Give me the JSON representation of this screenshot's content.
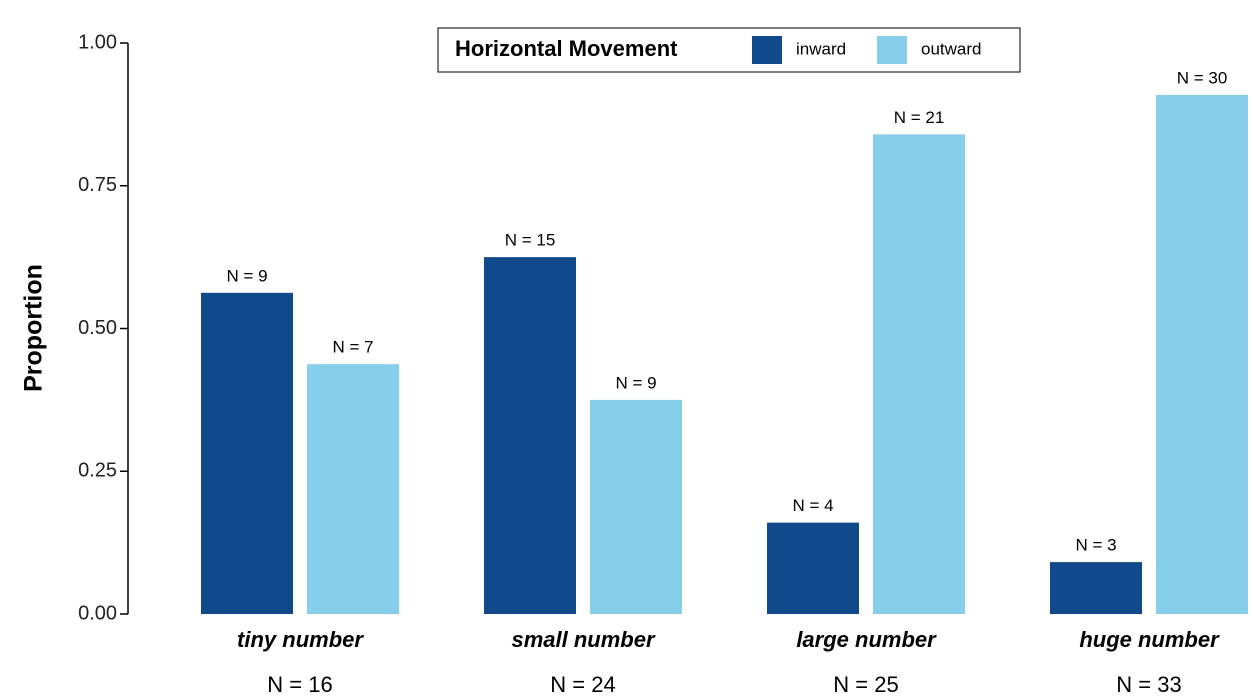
{
  "chart_data": {
    "type": "bar",
    "y_label": "Proportion",
    "legend_title": "Horizontal Movement",
    "categories": [
      "tiny number",
      "small number",
      "large number",
      "huge number"
    ],
    "category_counts": [
      "N = 16",
      "N = 24",
      "N = 25",
      "N = 33"
    ],
    "series": [
      {
        "name": "inward",
        "color": "#114a8b",
        "values": [
          0.5625,
          0.625,
          0.16,
          0.0909
        ],
        "value_labels": [
          "N = 9",
          "N = 15",
          "N = 4",
          "N = 3"
        ]
      },
      {
        "name": "outward",
        "color": "#87ceeb",
        "values": [
          0.4375,
          0.375,
          0.84,
          0.9091
        ],
        "value_labels": [
          "N = 7",
          "N = 9",
          "N = 21",
          "N = 30"
        ]
      }
    ],
    "ylim": [
      0,
      1
    ],
    "yticks": [
      {
        "value": 0,
        "label": "0.00"
      },
      {
        "value": 0.25,
        "label": "0.25"
      },
      {
        "value": 0.5,
        "label": "0.50"
      },
      {
        "value": 0.75,
        "label": "0.75"
      },
      {
        "value": 1,
        "label": "1.00"
      }
    ],
    "legend_position": "top"
  }
}
